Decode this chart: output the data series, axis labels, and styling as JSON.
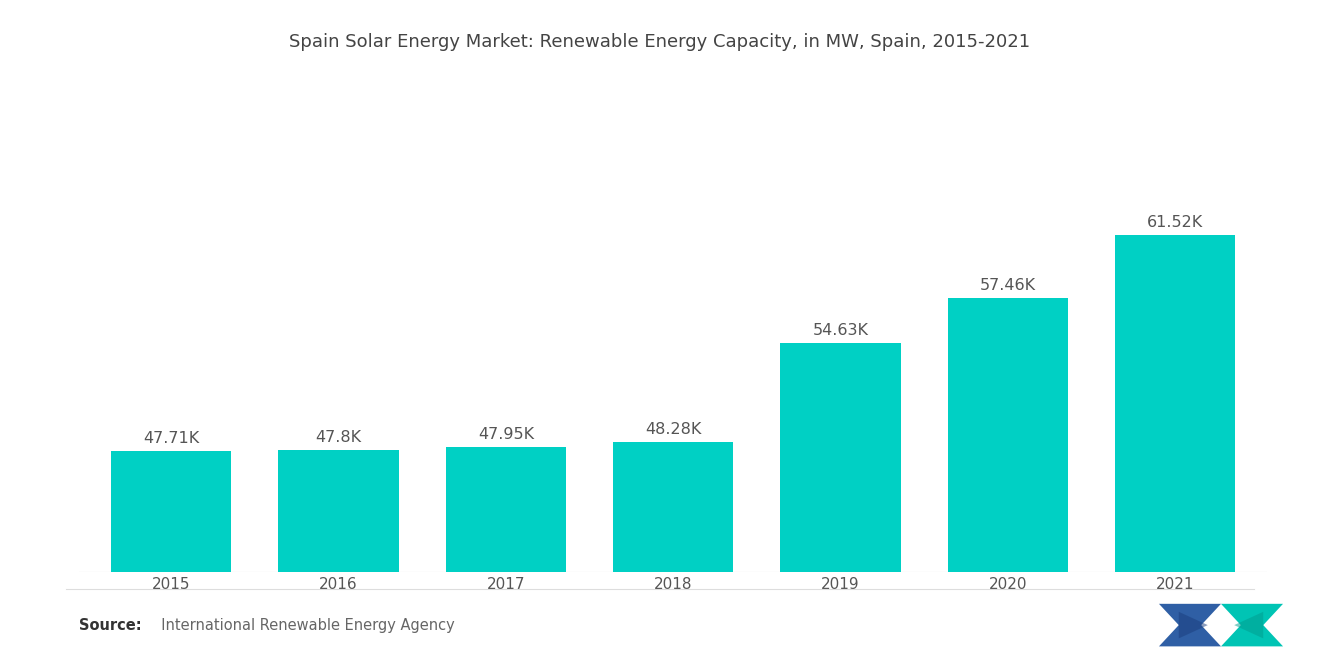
{
  "title": "Spain Solar Energy Market: Renewable Energy Capacity, in MW, Spain, 2015-2021",
  "categories": [
    "2015",
    "2016",
    "2017",
    "2018",
    "2019",
    "2020",
    "2021"
  ],
  "values": [
    47710,
    47800,
    47950,
    48280,
    54630,
    57460,
    61520
  ],
  "labels": [
    "47.71K",
    "47.8K",
    "47.95K",
    "48.28K",
    "54.63K",
    "57.46K",
    "61.52K"
  ],
  "bar_color": "#00D0C4",
  "background_color": "#ffffff",
  "title_fontsize": 13,
  "label_fontsize": 11.5,
  "tick_fontsize": 11,
  "source_bold": "Source:",
  "source_normal": "  International Renewable Energy Agency",
  "ylim": [
    40000,
    68000
  ]
}
